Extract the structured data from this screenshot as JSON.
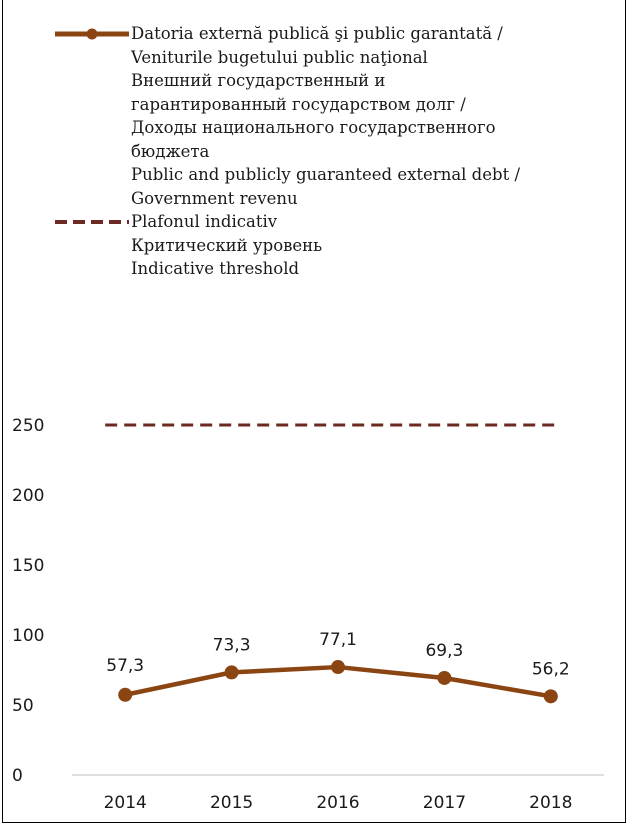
{
  "chart_data": {
    "type": "line",
    "categories": [
      "2014",
      "2015",
      "2016",
      "2017",
      "2018"
    ],
    "series": [
      {
        "name": "Datoria externă publică şi public garantată / Veniturile bugetului public naţional / Внешний государственный и гарантированный государством долг / Доходы национального государственного бюджета / Public and publicly guaranteed external debt / Government revenu",
        "values": [
          57.3,
          73.3,
          77.1,
          69.3,
          56.2
        ],
        "data_labels": [
          "57,3",
          "73,3",
          "77,1",
          "69,3",
          "56,2"
        ],
        "color": "#8B4513",
        "style": "solid-with-markers"
      },
      {
        "name": "Plafonul indicativ / Критический уровень / Indicative threshold",
        "values": [
          250,
          250,
          250,
          250,
          250
        ],
        "color": "#6B2A22",
        "style": "dashed"
      }
    ],
    "y_ticks": [
      "0",
      "50",
      "100",
      "150",
      "200",
      "250"
    ],
    "ylim": [
      0,
      250
    ],
    "grid": false,
    "legend_position": "top"
  },
  "legend": {
    "series1_lines": [
      "Datoria externă publică şi public garantată /",
      "Veniturile bugetului public naţional",
      "Внешний государственный и",
      "гарантированный государством долг /",
      "Доходы национального государственного",
      "бюджета",
      "Public and publicly guaranteed external debt /",
      "Government revenu"
    ],
    "series2_lines": [
      "Plafonul indicativ",
      "Критический уровень",
      "Indicative threshold"
    ]
  }
}
